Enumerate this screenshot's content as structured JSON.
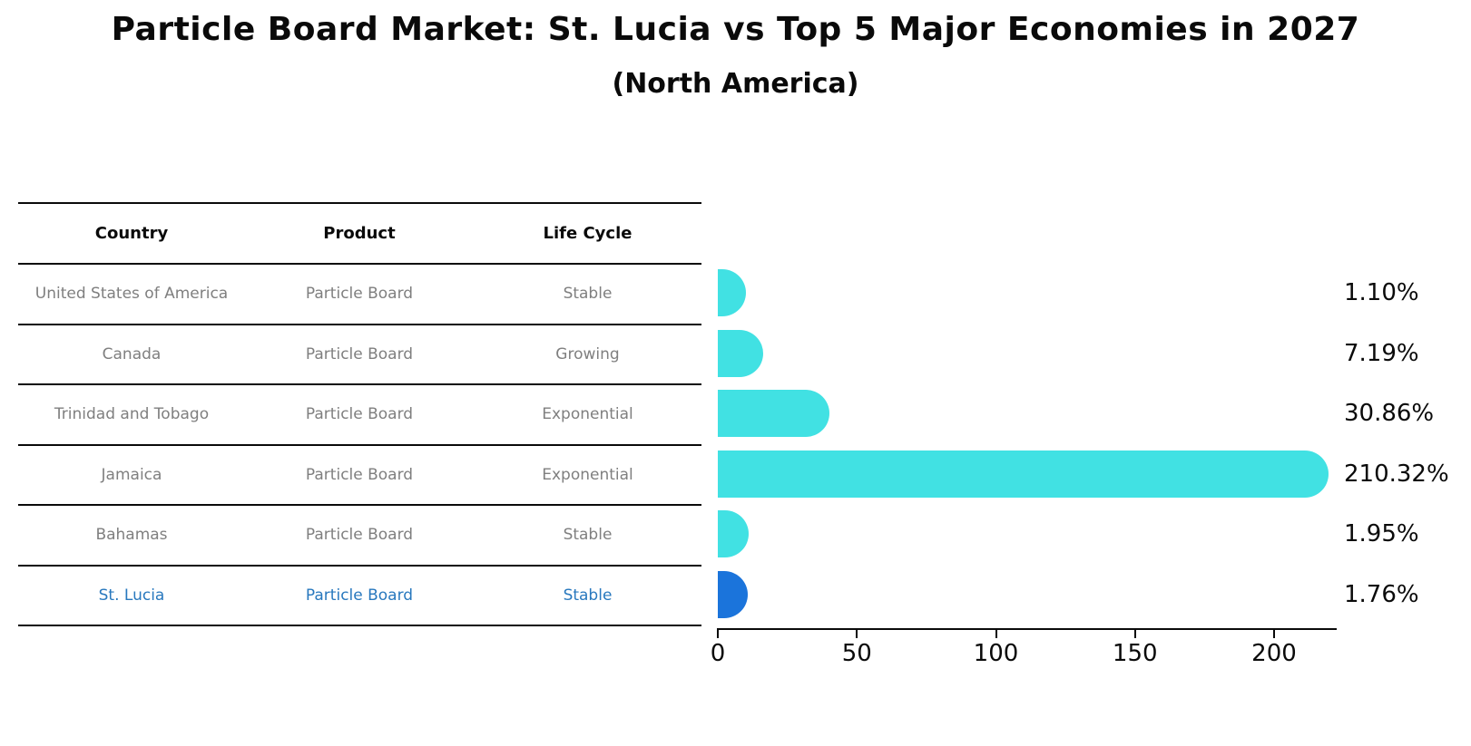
{
  "title": "Particle Board Market: St. Lucia vs Top 5 Major Economies in 2027",
  "subtitle": "(North America)",
  "table": {
    "headers": [
      "Country",
      "Product",
      "Life Cycle"
    ],
    "rows": [
      {
        "country": "United States of America",
        "product": "Particle Board",
        "life_cycle": "Stable",
        "highlight": false
      },
      {
        "country": "Canada",
        "product": "Particle Board",
        "life_cycle": "Growing",
        "highlight": false
      },
      {
        "country": "Trinidad and Tobago",
        "product": "Particle Board",
        "life_cycle": "Exponential",
        "highlight": false
      },
      {
        "country": "Jamaica",
        "product": "Particle Board",
        "life_cycle": "Exponential",
        "highlight": false
      },
      {
        "country": "Bahamas",
        "product": "Particle Board",
        "life_cycle": "Stable",
        "highlight": false
      },
      {
        "country": "St. Lucia",
        "product": "Particle Board",
        "life_cycle": "Stable",
        "highlight": true
      }
    ]
  },
  "chart_data": {
    "type": "bar",
    "orientation": "horizontal",
    "title": "Particle Board Market: St. Lucia vs Top 5 Major Economies in 2027 (North America)",
    "xlabel": "",
    "ylabel": "",
    "categories": [
      "United States of America",
      "Canada",
      "Trinidad and Tobago",
      "Jamaica",
      "Bahamas",
      "St. Lucia"
    ],
    "values": [
      1.1,
      7.19,
      30.86,
      210.32,
      1.95,
      1.76
    ],
    "value_labels": [
      "1.10%",
      "7.19%",
      "30.86%",
      "210.32%",
      "1.95%",
      "1.76%"
    ],
    "x_ticks": [
      0,
      50,
      100,
      150,
      200
    ],
    "xlim": [
      0,
      222
    ],
    "grid": false,
    "legend": false,
    "highlight_index": 5
  },
  "colors": {
    "bar": "#41E1E3",
    "highlight_bar": "#1B74DB",
    "row_text": "#7f7f7f",
    "highlight_text": "#2878BE",
    "axis": "#0a0a0a"
  }
}
